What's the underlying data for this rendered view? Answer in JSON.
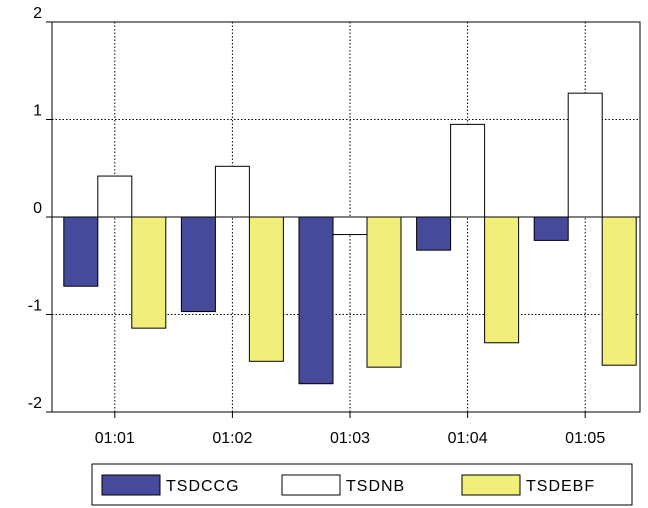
{
  "chart_data": {
    "type": "bar",
    "categories": [
      "01:01",
      "01:02",
      "01:03",
      "01:04",
      "01:05"
    ],
    "series": [
      {
        "name": "TSDCCG",
        "color": "#464a9a",
        "values": [
          -0.71,
          -0.97,
          -1.71,
          -0.34,
          -0.24
        ]
      },
      {
        "name": "TSDNB",
        "color": "#ffffff",
        "values": [
          0.42,
          0.52,
          -0.18,
          0.95,
          1.27
        ]
      },
      {
        "name": "TSDEBF",
        "color": "#f2ee7a",
        "values": [
          -1.14,
          -1.48,
          -1.54,
          -1.29,
          -1.52
        ]
      }
    ],
    "ylim": [
      -2,
      2
    ],
    "yticks": [
      2,
      1,
      0,
      -1,
      -2
    ],
    "ytick_labels": [
      "2",
      "1",
      "0",
      "-1",
      "-2"
    ],
    "grid": true,
    "legend_position": "bottom",
    "title": "",
    "xlabel": "",
    "ylabel": ""
  }
}
